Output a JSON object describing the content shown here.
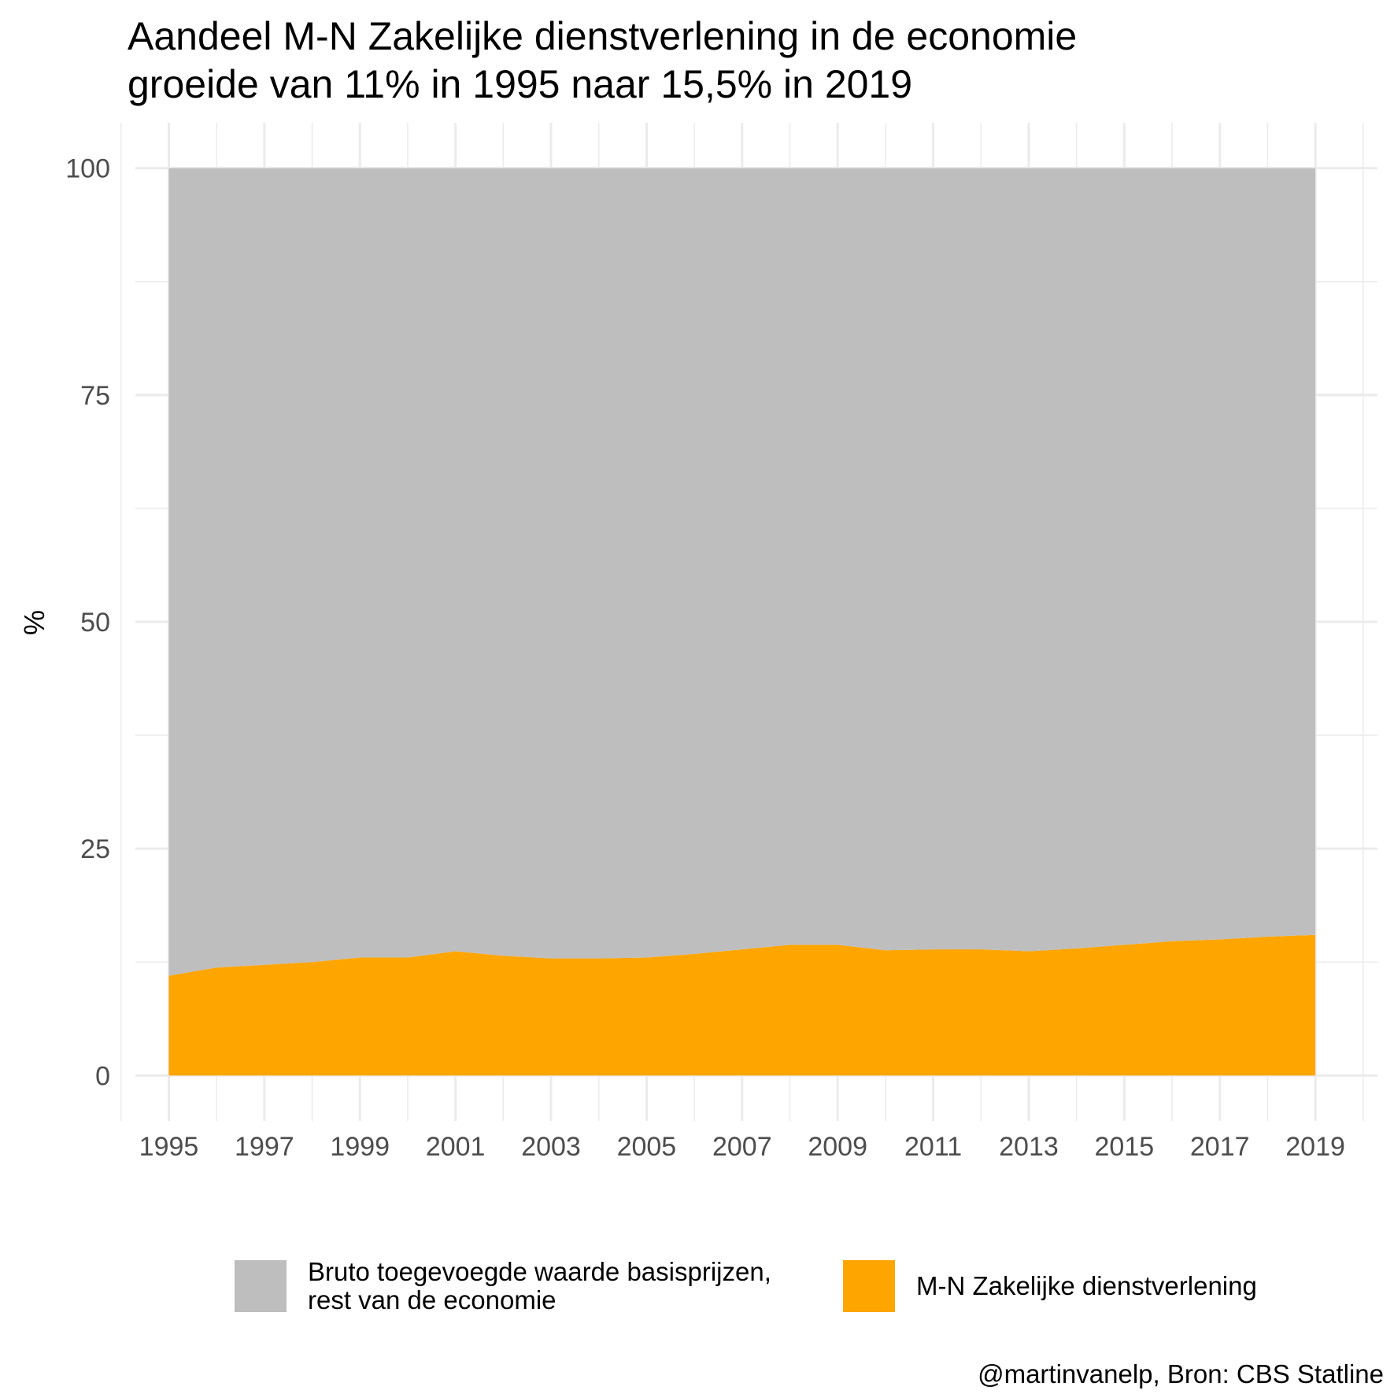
{
  "chart_data": {
    "type": "area",
    "stacked": true,
    "title_lines": [
      "Aandeel M-N Zakelijke dienstverlening in de economie",
      "groeide van 11% in 1995 naar 15,5% in 2019"
    ],
    "xlabel": "",
    "ylabel": "%",
    "xlim": [
      1994.3,
      2020.3
    ],
    "ylim": [
      -5,
      105
    ],
    "x_ticks": [
      "1995",
      "1997",
      "1999",
      "2001",
      "2003",
      "2005",
      "2007",
      "2009",
      "2011",
      "2013",
      "2015",
      "2017",
      "2019"
    ],
    "y_ticks": [
      "0",
      "25",
      "50",
      "75",
      "100"
    ],
    "grid": true,
    "x": [
      1995,
      1996,
      1997,
      1998,
      1999,
      2000,
      2001,
      2002,
      2003,
      2004,
      2005,
      2006,
      2007,
      2008,
      2009,
      2010,
      2011,
      2012,
      2013,
      2014,
      2015,
      2016,
      2017,
      2018,
      2019
    ],
    "series": [
      {
        "name": "M-N Zakelijke dienstverlening",
        "color": "#FFA500",
        "values": [
          11.0,
          11.9,
          12.2,
          12.5,
          13.0,
          13.0,
          13.7,
          13.2,
          12.9,
          12.9,
          13.0,
          13.4,
          13.9,
          14.4,
          14.4,
          13.8,
          13.9,
          13.9,
          13.7,
          14.0,
          14.4,
          14.8,
          15.0,
          15.3,
          15.5
        ]
      },
      {
        "name": "Bruto toegevoegde waarde basisprijzen, rest van de economie",
        "color": "#BEBEBE",
        "values": [
          89.0,
          88.1,
          87.8,
          87.5,
          87.0,
          87.0,
          86.3,
          86.8,
          87.1,
          87.1,
          87.0,
          86.6,
          86.1,
          85.6,
          85.6,
          86.2,
          86.1,
          86.1,
          86.3,
          86.0,
          85.6,
          85.2,
          85.0,
          84.7,
          84.5
        ]
      }
    ],
    "legend": {
      "placement": "bottom",
      "items": [
        {
          "lines": [
            "Bruto toegevoegde waarde basisprijzen,",
            "rest van de economie"
          ],
          "color": "#BEBEBE"
        },
        {
          "lines": [
            "M-N Zakelijke dienstverlening"
          ],
          "color": "#FFA500"
        }
      ]
    },
    "caption": "@martinvanelp, Bron: CBS Statline"
  }
}
